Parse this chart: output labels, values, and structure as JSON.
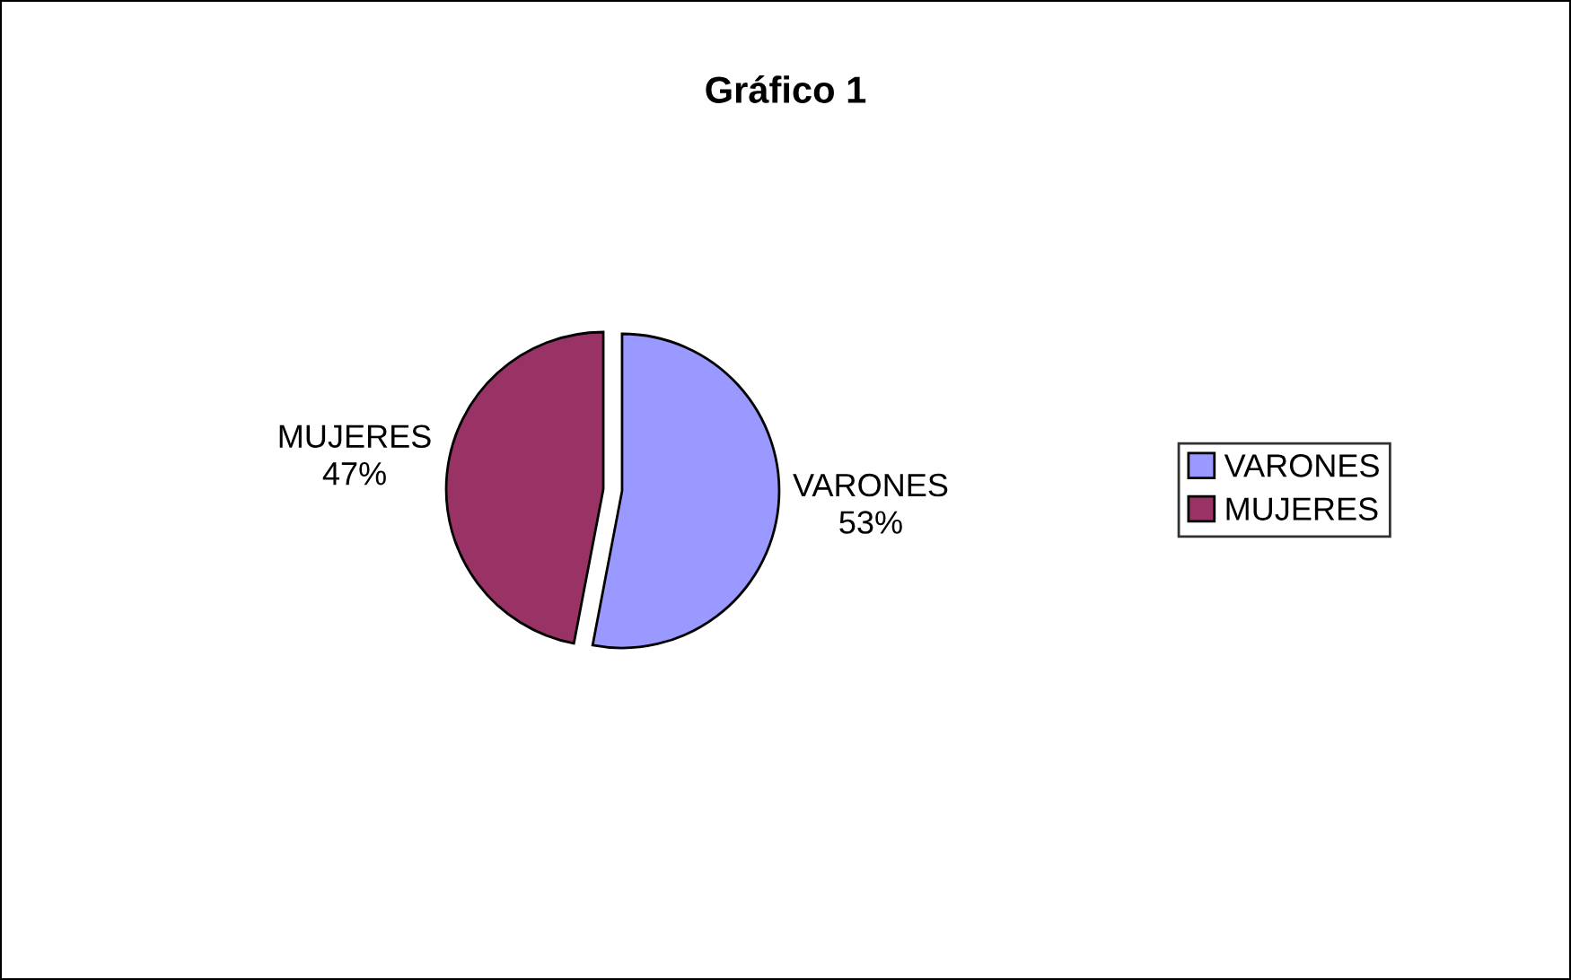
{
  "chart_data": {
    "type": "pie",
    "title": "Gráfico 1",
    "categories": [
      "VARONES",
      "MUJERES"
    ],
    "values": [
      53,
      47
    ],
    "value_labels": [
      "53%",
      "47%"
    ],
    "colors": [
      "#9999ff",
      "#993366"
    ],
    "legend": "right"
  }
}
